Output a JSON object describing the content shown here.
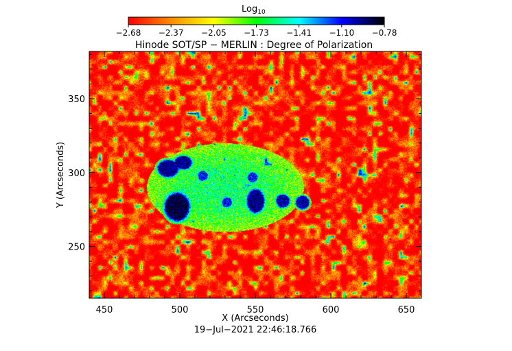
{
  "colorbar": {
    "label_main": "Log",
    "label_sub": "10",
    "ticks": [
      "−2.68",
      "−2.37",
      "−2.05",
      "−1.73",
      "−1.41",
      "−1.10",
      "−0.78"
    ],
    "range": [
      -2.68,
      -0.78
    ],
    "colormap": [
      "#ff0000",
      "#ff8c00",
      "#ffff00",
      "#00ff00",
      "#00ffff",
      "#0000ff",
      "#000000"
    ]
  },
  "chart_data": {
    "type": "heatmap",
    "title": "Hinode SOT/SP − MERLIN : Degree of Polarization",
    "xlabel": "X (Arcseconds)",
    "ylabel": "Y (Arcseconds)",
    "xlim": [
      440,
      660
    ],
    "ylim": [
      215,
      382
    ],
    "xticks": [
      450,
      500,
      550,
      600,
      650
    ],
    "yticks": [
      250,
      300,
      350
    ],
    "xtick_labels": [
      "450",
      "500",
      "550",
      "600",
      "650"
    ],
    "ytick_labels": [
      "250",
      "300",
      "350"
    ],
    "background_level": -2.6,
    "features": [
      {
        "kind": "sunspot-umbra",
        "x": 498,
        "y": 277,
        "rx": 7,
        "ry": 8,
        "level": -0.85
      },
      {
        "kind": "pore",
        "x": 492,
        "y": 303,
        "rx": 6,
        "ry": 5,
        "level": -0.95
      },
      {
        "kind": "pore",
        "x": 502,
        "y": 307,
        "rx": 5,
        "ry": 4,
        "level": -0.95
      },
      {
        "kind": "pore",
        "x": 550,
        "y": 281,
        "rx": 5,
        "ry": 7,
        "level": -0.95
      },
      {
        "kind": "pore",
        "x": 568,
        "y": 281,
        "rx": 4,
        "ry": 4,
        "level": -1.0
      },
      {
        "kind": "pore",
        "x": 531,
        "y": 280,
        "rx": 3,
        "ry": 3,
        "level": -1.1
      },
      {
        "kind": "pore",
        "x": 548,
        "y": 297,
        "rx": 3,
        "ry": 3,
        "level": -1.1
      },
      {
        "kind": "pore",
        "x": 515,
        "y": 298,
        "rx": 3,
        "ry": 3,
        "level": -1.1
      },
      {
        "kind": "pore",
        "x": 581,
        "y": 280,
        "rx": 4,
        "ry": 4,
        "level": -1.0
      }
    ],
    "plage_region": {
      "x": 530,
      "y": 290,
      "rx": 52,
      "ry": 30,
      "level": -1.9
    },
    "timestamp": "19−Jul−2021  22:46:18.766"
  }
}
